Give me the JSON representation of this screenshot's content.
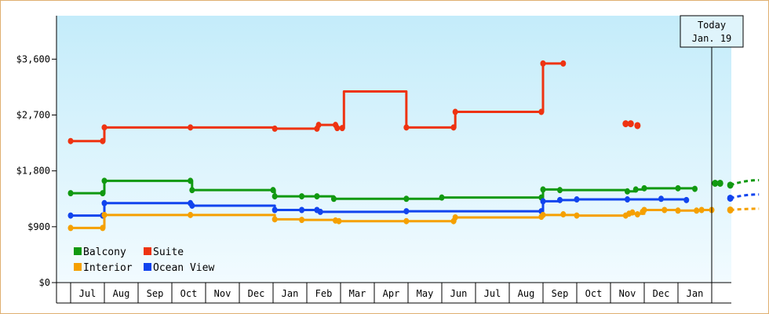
{
  "chart_data": {
    "type": "line",
    "title": "",
    "xlabel": "",
    "ylabel": "",
    "ylim": [
      0,
      4300
    ],
    "y_ticks": [
      {
        "value": 0,
        "label": "$0"
      },
      {
        "value": 900,
        "label": "$900"
      },
      {
        "value": 1800,
        "label": "$1,800"
      },
      {
        "value": 2700,
        "label": "$2,700"
      },
      {
        "value": 3600,
        "label": "$3,600"
      }
    ],
    "x_range": [
      0,
      20
    ],
    "x_ticks": [
      "Jul",
      "Aug",
      "Sep",
      "Oct",
      "Nov",
      "Dec",
      "Jan",
      "Feb",
      "Mar",
      "Apr",
      "May",
      "Jun",
      "Jul",
      "Aug",
      "Sep",
      "Oct",
      "Nov",
      "Dec",
      "Jan"
    ],
    "grid": false,
    "legend_position": "bottom-left",
    "today_marker": {
      "x": 19.0,
      "line1": "Today",
      "line2": "Jan. 19"
    },
    "series": [
      {
        "name": "Balcony",
        "color": "#119911",
        "points": [
          [
            0.0,
            1440
          ],
          [
            0.95,
            1440
          ],
          [
            1.0,
            1640
          ],
          [
            3.55,
            1640
          ],
          [
            3.6,
            1490
          ],
          [
            6.0,
            1490
          ],
          [
            6.05,
            1390
          ],
          [
            6.85,
            1390
          ],
          [
            7.3,
            1390
          ],
          [
            7.8,
            1350
          ],
          [
            9.95,
            1350
          ],
          [
            11.0,
            1370
          ],
          [
            13.95,
            1370
          ],
          [
            14.0,
            1500
          ],
          [
            14.5,
            1490
          ],
          [
            16.5,
            1470
          ],
          [
            16.75,
            1500
          ],
          [
            17.0,
            1520
          ],
          [
            18.0,
            1520
          ],
          [
            18.5,
            1510
          ]
        ],
        "markers": [
          [
            0.0,
            1440
          ],
          [
            0.95,
            1440
          ],
          [
            1.0,
            1640
          ],
          [
            3.55,
            1640
          ],
          [
            3.6,
            1490
          ],
          [
            6.0,
            1490
          ],
          [
            6.05,
            1390
          ],
          [
            6.85,
            1390
          ],
          [
            7.3,
            1390
          ],
          [
            7.8,
            1350
          ],
          [
            9.95,
            1350
          ],
          [
            11.0,
            1370
          ],
          [
            13.95,
            1370
          ],
          [
            14.0,
            1500
          ],
          [
            14.5,
            1490
          ],
          [
            16.5,
            1470
          ],
          [
            16.75,
            1500
          ],
          [
            17.0,
            1520
          ],
          [
            18.0,
            1520
          ],
          [
            18.5,
            1510
          ]
        ],
        "isolated": [
          [
            19.1,
            1600
          ],
          [
            19.25,
            1600
          ],
          [
            19.55,
            1570
          ]
        ],
        "projection": [
          [
            19.55,
            1570
          ],
          [
            20.4,
            1650
          ]
        ]
      },
      {
        "name": "Suite",
        "color": "#ee3311",
        "points": [
          [
            0.0,
            2280
          ],
          [
            0.95,
            2280
          ],
          [
            1.0,
            2500
          ],
          [
            3.55,
            2500
          ],
          [
            6.05,
            2480
          ],
          [
            7.3,
            2480
          ],
          [
            7.35,
            2540
          ],
          [
            7.85,
            2540
          ],
          [
            7.9,
            2490
          ],
          [
            8.05,
            2490
          ],
          [
            8.1,
            3080
          ],
          [
            9.9,
            3080
          ],
          [
            9.95,
            2500
          ],
          [
            11.35,
            2500
          ],
          [
            11.4,
            2750
          ],
          [
            13.95,
            2750
          ],
          [
            14.0,
            3530
          ],
          [
            14.6,
            3530
          ]
        ],
        "markers": [
          [
            0.0,
            2280
          ],
          [
            0.95,
            2280
          ],
          [
            1.0,
            2500
          ],
          [
            3.55,
            2500
          ],
          [
            6.05,
            2480
          ],
          [
            7.3,
            2480
          ],
          [
            7.35,
            2540
          ],
          [
            7.85,
            2540
          ],
          [
            7.9,
            2490
          ],
          [
            8.05,
            2490
          ],
          [
            9.95,
            2500
          ],
          [
            11.35,
            2500
          ],
          [
            11.4,
            2750
          ],
          [
            13.95,
            2750
          ],
          [
            14.0,
            3530
          ],
          [
            14.6,
            3530
          ]
        ],
        "isolated": [
          [
            16.45,
            2560
          ],
          [
            16.6,
            2560
          ],
          [
            16.8,
            2530
          ]
        ]
      },
      {
        "name": "Ocean View",
        "color": "#1144ee",
        "points": [
          [
            0.0,
            1080
          ],
          [
            0.95,
            1080
          ],
          [
            1.0,
            1280
          ],
          [
            3.55,
            1280
          ],
          [
            3.6,
            1240
          ],
          [
            6.0,
            1240
          ],
          [
            6.05,
            1170
          ],
          [
            6.85,
            1170
          ],
          [
            7.3,
            1170
          ],
          [
            7.4,
            1140
          ],
          [
            9.95,
            1150
          ],
          [
            11.0,
            1150
          ],
          [
            13.95,
            1150
          ],
          [
            14.0,
            1310
          ],
          [
            14.5,
            1330
          ],
          [
            15.0,
            1340
          ],
          [
            18.0,
            1340
          ],
          [
            18.25,
            1330
          ]
        ],
        "markers": [
          [
            0.0,
            1080
          ],
          [
            0.95,
            1080
          ],
          [
            1.0,
            1280
          ],
          [
            3.55,
            1280
          ],
          [
            3.6,
            1240
          ],
          [
            6.05,
            1170
          ],
          [
            6.85,
            1170
          ],
          [
            7.3,
            1170
          ],
          [
            7.4,
            1140
          ],
          [
            9.95,
            1150
          ],
          [
            13.95,
            1150
          ],
          [
            14.0,
            1310
          ],
          [
            14.5,
            1330
          ],
          [
            15.0,
            1340
          ],
          [
            16.5,
            1340
          ],
          [
            17.5,
            1350
          ],
          [
            18.25,
            1330
          ]
        ],
        "isolated": [
          [
            19.55,
            1360
          ]
        ],
        "projection": [
          [
            19.55,
            1360
          ],
          [
            20.4,
            1420
          ]
        ]
      },
      {
        "name": "Interior",
        "color": "#f5a000",
        "points": [
          [
            0.0,
            880
          ],
          [
            0.95,
            880
          ],
          [
            1.0,
            1090
          ],
          [
            3.55,
            1090
          ],
          [
            6.0,
            1090
          ],
          [
            6.05,
            1020
          ],
          [
            6.85,
            1010
          ],
          [
            7.85,
            1000
          ],
          [
            7.95,
            990
          ],
          [
            9.95,
            990
          ],
          [
            11.35,
            990
          ],
          [
            11.4,
            1050
          ],
          [
            13.95,
            1060
          ],
          [
            14.0,
            1090
          ],
          [
            14.5,
            1090
          ],
          [
            15.0,
            1080
          ],
          [
            16.45,
            1080
          ],
          [
            16.5,
            1110
          ],
          [
            17.0,
            1170
          ],
          [
            17.5,
            1170
          ],
          [
            18.0,
            1160
          ],
          [
            18.55,
            1160
          ],
          [
            18.6,
            1170
          ],
          [
            19.0,
            1170
          ]
        ],
        "markers": [
          [
            0.0,
            880
          ],
          [
            0.95,
            880
          ],
          [
            1.0,
            1090
          ],
          [
            3.55,
            1090
          ],
          [
            6.05,
            1020
          ],
          [
            6.85,
            1010
          ],
          [
            7.85,
            1000
          ],
          [
            7.95,
            990
          ],
          [
            9.95,
            990
          ],
          [
            11.35,
            990
          ],
          [
            11.4,
            1050
          ],
          [
            13.95,
            1060
          ],
          [
            14.0,
            1090
          ],
          [
            14.6,
            1100
          ],
          [
            15.0,
            1080
          ],
          [
            16.45,
            1080
          ],
          [
            16.55,
            1110
          ],
          [
            16.65,
            1130
          ],
          [
            16.8,
            1100
          ],
          [
            16.95,
            1140
          ],
          [
            17.0,
            1170
          ],
          [
            17.6,
            1170
          ],
          [
            18.0,
            1160
          ],
          [
            18.55,
            1160
          ],
          [
            18.7,
            1170
          ],
          [
            19.0,
            1170
          ]
        ],
        "isolated": [
          [
            19.55,
            1170
          ]
        ],
        "projection": [
          [
            19.55,
            1170
          ],
          [
            20.4,
            1190
          ]
        ]
      }
    ],
    "legend": [
      {
        "name": "Balcony",
        "color": "#119911"
      },
      {
        "name": "Suite",
        "color": "#ee3311"
      },
      {
        "name": "Interior",
        "color": "#f5a000"
      },
      {
        "name": "Ocean View",
        "color": "#1144ee"
      }
    ]
  }
}
